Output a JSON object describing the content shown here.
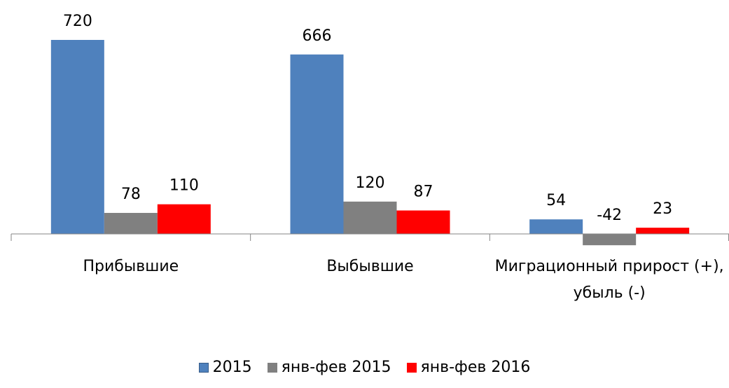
{
  "chart_data": {
    "type": "bar",
    "categories": [
      "Прибывшие",
      "Выбывшие",
      "Миграционный прирост (+), убыль (-)"
    ],
    "series": [
      {
        "name": "2015",
        "color": "#4f81bd",
        "values": [
          720,
          666,
          54
        ]
      },
      {
        "name": "янв-фев 2015",
        "color": "#808080",
        "values": [
          78,
          120,
          -42
        ]
      },
      {
        "name": "янв-фев 2016",
        "color": "#ff0000",
        "values": [
          110,
          87,
          23
        ]
      }
    ],
    "legend": "bottom"
  }
}
